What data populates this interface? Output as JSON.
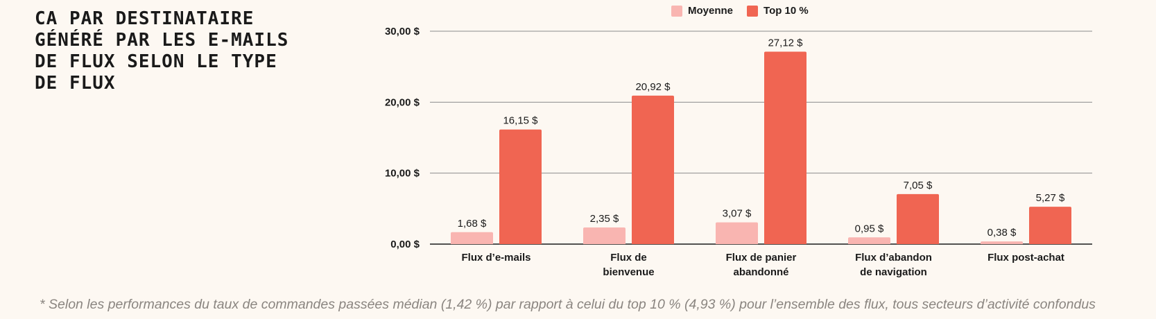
{
  "title": "CA PAR DESTINATAIRE\nGÉNÉRÉ PAR LES E-MAILS\nDE FLUX SELON LE TYPE\nDE FLUX",
  "footnote": "* Selon les performances du taux de commandes passées médian (1,42 %) par rapport à celui du top 10 % (4,93 %) pour l’ensemble des flux, tous secteurs d’activité confondus",
  "colors": {
    "moyenne": "#f9b5b1",
    "top10": "#f06552",
    "gridline": "#8c8c8c",
    "background": "#fdf8f2"
  },
  "chart_data": {
    "type": "bar",
    "title": "CA PAR DESTINATAIRE GÉNÉRÉ PAR LES E-MAILS DE FLUX SELON LE TYPE DE FLUX",
    "categories": [
      [
        "Flux d’e-mails"
      ],
      [
        "Flux de",
        "bienvenue"
      ],
      [
        "Flux de panier",
        "abandonné"
      ],
      [
        "Flux d’abandon",
        "de navigation"
      ],
      [
        "Flux post-achat"
      ]
    ],
    "series": [
      {
        "name": "Moyenne",
        "values": [
          1.68,
          2.35,
          3.07,
          0.95,
          0.38
        ],
        "labels": [
          "1,68 $",
          "2,35 $",
          "3,07 $",
          "0,95 $",
          "0,38 $"
        ]
      },
      {
        "name": "Top 10 %",
        "values": [
          16.15,
          20.92,
          27.12,
          7.05,
          5.27
        ],
        "labels": [
          "16,15 $",
          "20,92 $",
          "27,12 $",
          "7,05 $",
          "5,27 $"
        ]
      }
    ],
    "yticks": [
      {
        "value": 0,
        "label": "0,00 $"
      },
      {
        "value": 10,
        "label": "10,00 $"
      },
      {
        "value": 20,
        "label": "20,00 $"
      },
      {
        "value": 30,
        "label": "30,00 $"
      }
    ],
    "ylim": [
      0,
      30
    ],
    "xlabel": "",
    "ylabel": "",
    "grid": true,
    "legend_position": "top-center"
  }
}
